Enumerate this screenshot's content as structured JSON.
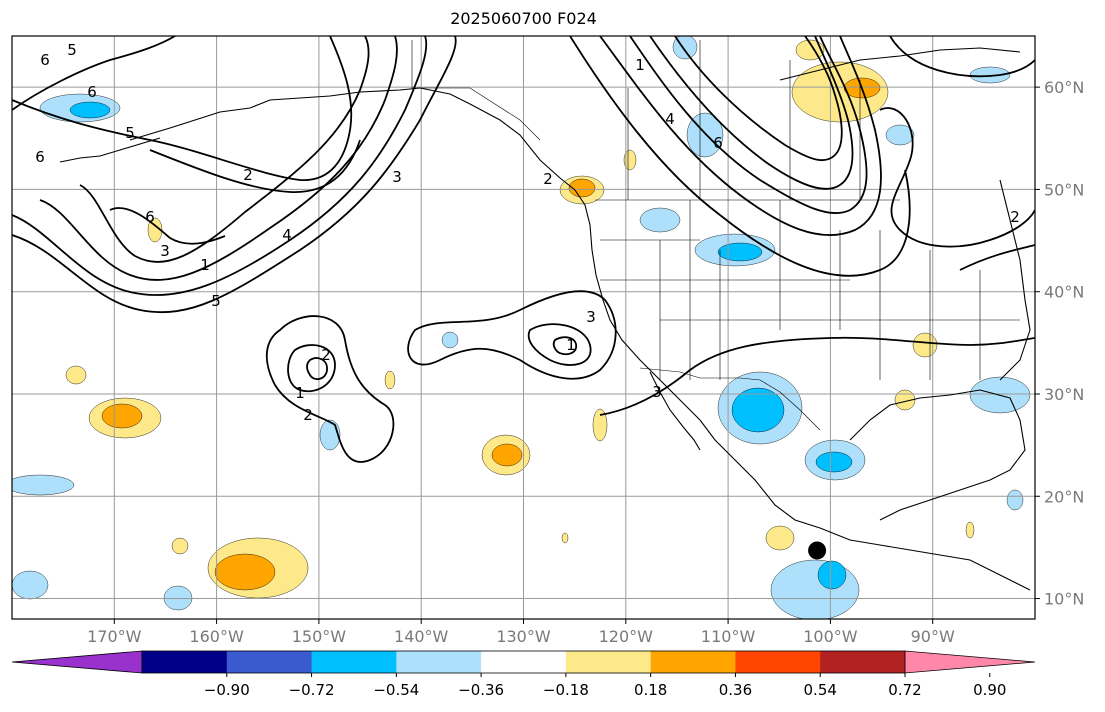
{
  "title": "2025060700 F024",
  "map": {
    "projection": "equirectangular",
    "lon_range": [
      -180,
      -80
    ],
    "lat_range": [
      8,
      65
    ],
    "lat_ticks": [
      "60°N",
      "50°N",
      "40°N",
      "30°N",
      "20°N",
      "10°N"
    ],
    "lon_ticks": [
      "170°W",
      "160°W",
      "150°W",
      "140°W",
      "130°W",
      "120°W",
      "110°W",
      "100°W",
      "90°W"
    ],
    "grid": true,
    "contour_color": "#000000",
    "marker": {
      "symbol": "black-dot",
      "lon": -101.3,
      "lat": 14.7
    },
    "contour_labels": [
      "6",
      "5",
      "6",
      "5",
      "6",
      "2",
      "3",
      "4",
      "1",
      "5",
      "6",
      "3",
      "2",
      "1",
      "2",
      "3",
      "1",
      "3",
      "2",
      "4",
      "6",
      "2",
      "1"
    ]
  },
  "colorbar": {
    "extend": "both",
    "ticks": [
      "−0.90",
      "−0.72",
      "−0.54",
      "−0.36",
      "−0.18",
      "0.18",
      "0.36",
      "0.54",
      "0.72",
      "0.90"
    ],
    "colors": [
      "#9932cc",
      "#00008b",
      "#3a5bd0",
      "#00bfff",
      "#aee0fb",
      "#ffffff",
      "#fde98a",
      "#ffa500",
      "#ff4500",
      "#b22222",
      "#ff88aa"
    ]
  }
}
